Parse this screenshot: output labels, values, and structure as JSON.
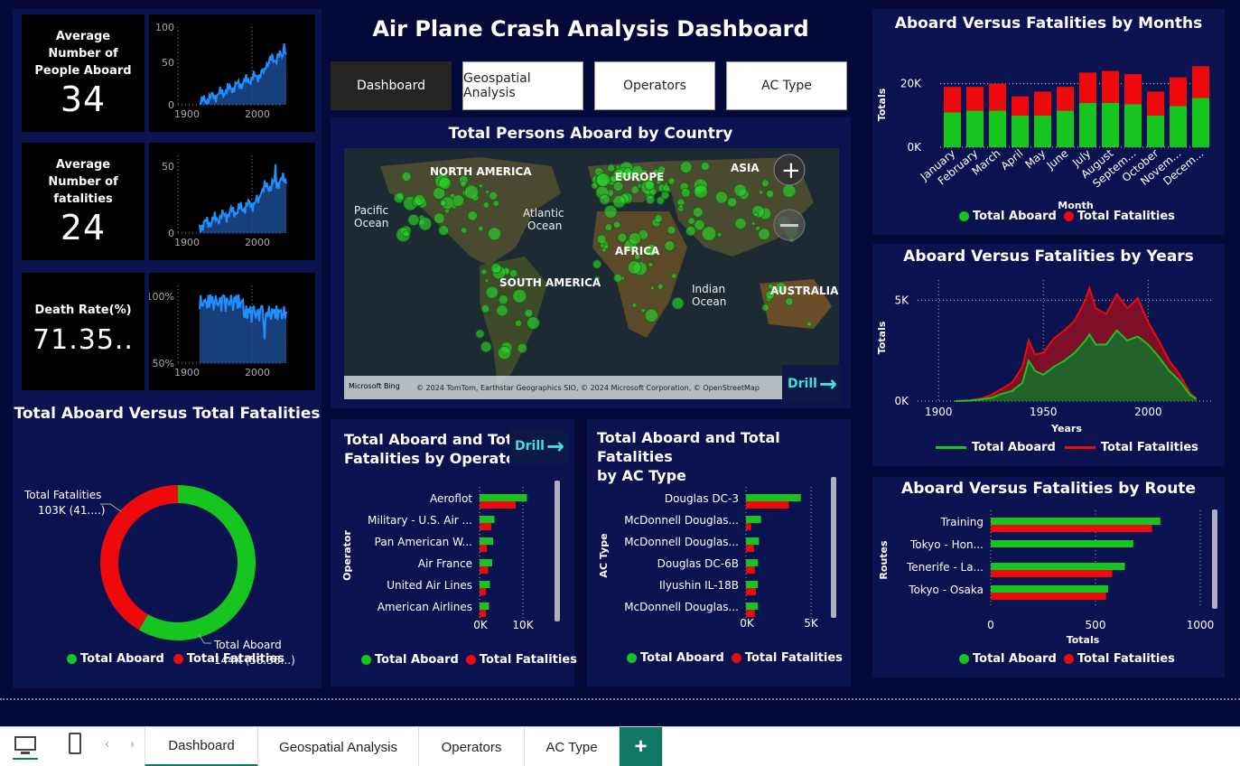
{
  "dashboard_title": "Air Plane Crash Analysis Dashboard",
  "nav_buttons": [
    "Dashboard",
    "Geospatial Analysis",
    "Operators",
    "AC Type"
  ],
  "kpis": [
    {
      "label_lines": [
        "Average",
        "Number of",
        "People Aboard"
      ],
      "value": "34",
      "spark": {
        "yticks": [
          "100",
          "50",
          "0"
        ],
        "xticks": [
          "1900",
          "2000"
        ]
      }
    },
    {
      "label_lines": [
        "Average",
        "Number of",
        "fatalities"
      ],
      "value": "24",
      "spark": {
        "yticks": [
          "50",
          "0"
        ],
        "xticks": [
          "1900",
          "2000"
        ]
      }
    },
    {
      "label_lines": [
        "Death Rate(%)"
      ],
      "value": "71.35..",
      "spark": {
        "yticks": [
          "100%",
          "50%"
        ],
        "xticks": [
          "1900",
          "2000"
        ]
      }
    }
  ],
  "donut": {
    "title": "Total Aboard Versus Total Fatalities",
    "fatalities_label": "Total Fatalities",
    "fatalities_value": "103K (41....)",
    "aboard_label": "Total Aboard",
    "aboard_value": "144K (58.36...)",
    "aboard_fraction": 0.5836,
    "legend": [
      "Total Aboard",
      "Total Fatalities"
    ]
  },
  "map": {
    "title": "Total Persons Aboard by Country",
    "labels": [
      "NORTH AMERICA",
      "EUROPE",
      "ASIA",
      "Pacific",
      "Ocean",
      "Atlantic",
      "Ocean",
      "AFRICA",
      "SOUTH AMERICA",
      "Indian",
      "Ocean",
      "AUSTRALIA"
    ],
    "attribution": "© 2024 TomTom, Earthstar Geographics SIO, © 2024 Microsoft Corporation, © OpenStreetMap",
    "bing": "Microsoft Bing",
    "drill": "Drill"
  },
  "operator_chart": {
    "title_lines": [
      "Total Aboard and Total",
      "Fatalities by Operator"
    ],
    "ylabel": "Operator",
    "drill": "Drill",
    "xticks": [
      "0K",
      "10K"
    ],
    "legend": [
      "Total Aboard",
      "Total Fatalities"
    ],
    "chart_data": {
      "type": "bar",
      "categories": [
        "Aeroflot",
        "Military - U.S. Air ...",
        "Pan American W...",
        "Air France",
        "United Air Lines",
        "American Airlines"
      ],
      "series": [
        {
          "name": "Total Aboard",
          "values": [
            10500,
            3300,
            3000,
            2800,
            2300,
            2100
          ]
        },
        {
          "name": "Total Fatalities",
          "values": [
            8000,
            2600,
            1600,
            1900,
            1400,
            1400
          ]
        }
      ],
      "xlim": [
        0,
        14000
      ]
    }
  },
  "actype_chart": {
    "title_lines": [
      "Total Aboard and Total Fatalities",
      "by AC Type"
    ],
    "ylabel": "AC Type",
    "xticks": [
      "0K",
      "5K"
    ],
    "legend": [
      "Total Aboard",
      "Total Fatalities"
    ],
    "chart_data": {
      "type": "bar",
      "categories": [
        "Douglas DC-3",
        "McDonnell Douglas...",
        "McDonnell Douglas...",
        "Douglas DC-6B",
        "Ilyushin IL-18B",
        "McDonnell Douglas..."
      ],
      "series": [
        {
          "name": "Total Aboard",
          "values": [
            5500,
            1500,
            1300,
            1200,
            1200,
            1200
          ]
        },
        {
          "name": "Total Fatalities",
          "values": [
            4300,
            500,
            800,
            900,
            1000,
            900
          ]
        }
      ],
      "xlim": [
        0,
        6700
      ]
    }
  },
  "months_chart": {
    "title": "Aboard Versus Fatalities by Months",
    "ylabel": "Totals",
    "xlabel": "Month",
    "yticks": [
      "20K",
      "0K"
    ],
    "legend": [
      "Total Aboard",
      "Total Fatalities"
    ],
    "chart_data": {
      "type": "bar",
      "categories": [
        "January",
        "February",
        "March",
        "April",
        "May",
        "June",
        "July",
        "August",
        "Septem...",
        "October",
        "Novem...",
        "Decem..."
      ],
      "series": [
        {
          "name": "Total Aboard",
          "values": [
            11000,
            11500,
            11500,
            10000,
            10000,
            11500,
            14000,
            14000,
            13500,
            10000,
            13000,
            15500
          ]
        },
        {
          "name": "Total Fatalities",
          "values": [
            8000,
            7500,
            8500,
            6000,
            7500,
            7500,
            9500,
            10000,
            9500,
            7500,
            9000,
            10000
          ]
        }
      ],
      "ylim": [
        0,
        27000
      ]
    }
  },
  "years_chart": {
    "title": "Aboard Versus Fatalities by Years",
    "ylabel": "Totals",
    "xlabel": "Years",
    "yticks": [
      "5K",
      "0K"
    ],
    "xticks": [
      "1900",
      "1950",
      "2000"
    ],
    "legend": [
      "Total Aboard",
      "Total Fatalities"
    ],
    "chart_data": {
      "type": "area",
      "x": [
        1908,
        1915,
        1920,
        1925,
        1930,
        1935,
        1940,
        1943,
        1946,
        1950,
        1955,
        1960,
        1965,
        1970,
        1972,
        1975,
        1980,
        1985,
        1990,
        1995,
        2000,
        2005,
        2010,
        2015,
        2020,
        2023
      ],
      "series": [
        {
          "name": "Total Aboard",
          "values": [
            0,
            20,
            80,
            150,
            350,
            500,
            900,
            2000,
            1500,
            1300,
            1700,
            2000,
            2400,
            3000,
            3300,
            2800,
            2800,
            3500,
            3000,
            3200,
            2800,
            2200,
            1500,
            1000,
            300,
            100
          ]
        },
        {
          "name": "Total Fatalities",
          "values": [
            0,
            40,
            120,
            300,
            600,
            900,
            1700,
            3000,
            2300,
            2400,
            3100,
            3500,
            4000,
            5000,
            5600,
            4600,
            4300,
            5300,
            4600,
            5100,
            3900,
            3000,
            2000,
            1300,
            400,
            100
          ]
        }
      ],
      "ylim": [
        0,
        6000
      ],
      "xlim": [
        1890,
        2030
      ]
    }
  },
  "route_chart": {
    "title": "Aboard Versus Fatalities by Route",
    "ylabel": "Routes",
    "xlabel": "Totals",
    "xticks": [
      "0",
      "500",
      "1000"
    ],
    "legend": [
      "Total Aboard",
      "Total Fatalities"
    ],
    "chart_data": {
      "type": "bar",
      "categories": [
        "Training",
        "Tokyo - Hon...",
        "Tenerife - La...",
        "Tokyo - Osaka"
      ],
      "series": [
        {
          "name": "Total Aboard",
          "values": [
            810,
            680,
            640,
            560
          ]
        },
        {
          "name": "Total Fatalities",
          "values": [
            770,
            0,
            580,
            550
          ]
        }
      ],
      "xlim": [
        0,
        1000
      ]
    }
  },
  "page_tabs": [
    "Dashboard",
    "Geospatial Analysis",
    "Operators",
    "AC Type"
  ],
  "add_tab": "+",
  "colors": {
    "aboard": "#17c51f",
    "fatalities": "#ee0a0a",
    "spark": "#1e90ff",
    "bg": "#04093a",
    "panel": "#0a1250"
  }
}
